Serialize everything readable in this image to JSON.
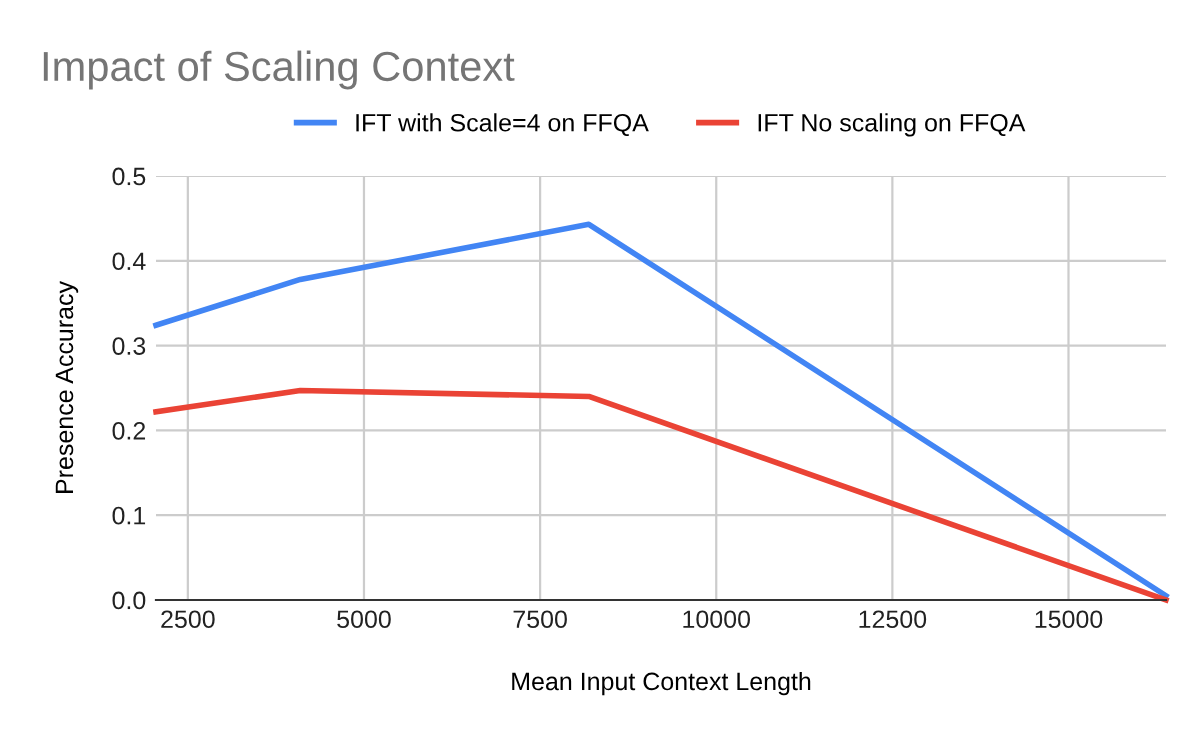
{
  "chart_data": {
    "type": "line",
    "title": "Impact of Scaling Context",
    "xlabel": "Mean Input Context Length",
    "ylabel": "Presence Accuracy",
    "x": [
      2048,
      4096,
      8192,
      16384
    ],
    "series": [
      {
        "name": "IFT with Scale=4 on FFQA",
        "color": "#4285f4",
        "values": [
          0.324,
          0.378,
          0.443,
          0.005
        ]
      },
      {
        "name": "IFT No scaling on FFQA",
        "color": "#ea4335",
        "values": [
          0.222,
          0.247,
          0.24,
          0.0
        ]
      }
    ],
    "xlim": [
      2048,
      16384
    ],
    "xticks": [
      2500,
      5000,
      7500,
      10000,
      12500,
      15000
    ],
    "ylim": [
      0,
      0.5
    ],
    "yticks": [
      {
        "value": 0,
        "label": "0.0"
      },
      0.1,
      0.2,
      0.3,
      0.4,
      0.5
    ],
    "grid": true,
    "legend": "top",
    "marker": "none",
    "line_style": "solid"
  }
}
